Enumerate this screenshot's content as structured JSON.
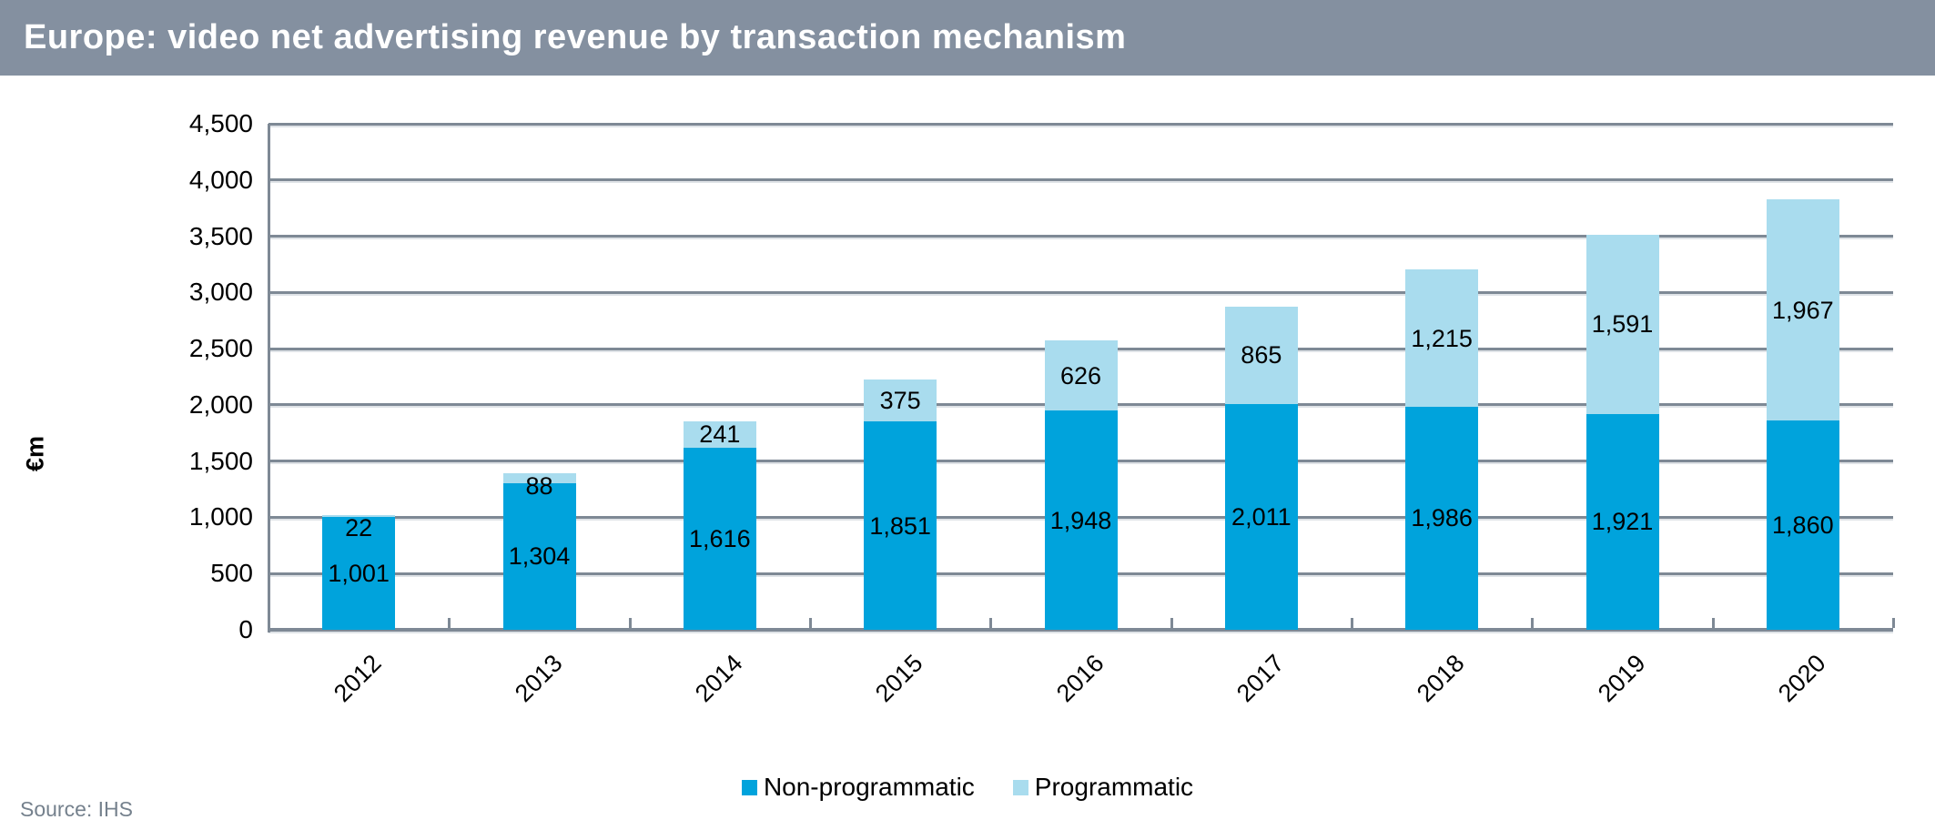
{
  "header": {
    "title": "Europe: video net advertising revenue by transaction mechanism",
    "bg_color": "#8490A0",
    "text_color": "#FFFFFF"
  },
  "source": {
    "label": "Source: IHS",
    "color": "#75818D"
  },
  "chart_data": {
    "type": "bar",
    "stacked": true,
    "title": "Europe: video net advertising revenue by transaction mechanism",
    "ylabel": "€m",
    "xlabel": "",
    "ylim": [
      0,
      4500
    ],
    "ytick_interval": 500,
    "yticks": [
      "0",
      "500",
      "1,000",
      "1,500",
      "2,000",
      "2,500",
      "3,000",
      "3,500",
      "4,000",
      "4,500"
    ],
    "grid": true,
    "gridline_color": "#7E8995",
    "legend_position": "bottom",
    "categories": [
      "2012",
      "2013",
      "2014",
      "2015",
      "2016",
      "2017",
      "2018",
      "2019",
      "2020"
    ],
    "series": [
      {
        "name": "Non-programmatic",
        "color": "#00A3DC",
        "values": [
          1001,
          1304,
          1616,
          1851,
          1948,
          2011,
          1986,
          1921,
          1860
        ],
        "labels": [
          "1,001",
          "1,304",
          "1,616",
          "1,851",
          "1,948",
          "2,011",
          "1,986",
          "1,921",
          "1,860"
        ]
      },
      {
        "name": "Programmatic",
        "color": "#A9DCEE",
        "values": [
          22,
          88,
          241,
          375,
          626,
          865,
          1215,
          1591,
          1967
        ],
        "labels": [
          "22",
          "88",
          "241",
          "375",
          "626",
          "865",
          "1,215",
          "1,591",
          "1,967"
        ]
      }
    ]
  }
}
